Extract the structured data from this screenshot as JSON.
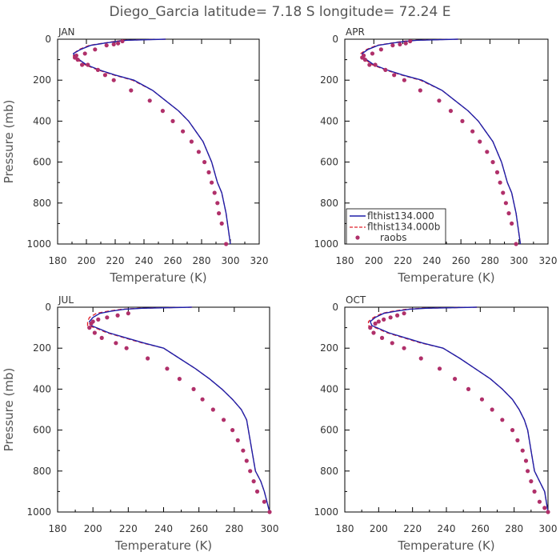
{
  "title": "Diego_Garcia   latitude= 7.18 S longitude= 72.24 E",
  "colors": {
    "model": "#1f1fa8",
    "model_b": "#e0202a",
    "raobs": "#b0306a"
  },
  "chart_data": [
    {
      "type": "line",
      "month": "JAN",
      "xlabel": "Temperature (K)",
      "ylabel": "Pressure (mb)",
      "xlim": [
        180,
        320
      ],
      "xticks": [
        180,
        200,
        220,
        240,
        260,
        280,
        300,
        320
      ],
      "ylim": [
        0,
        1000
      ],
      "yticks": [
        0,
        200,
        400,
        600,
        800,
        1000
      ],
      "y_inverted": true,
      "legend": false,
      "model": {
        "name": "",
        "T": [
          255,
          228,
          222,
          212,
          203,
          196,
          191,
          192,
          195,
          200,
          209,
          220,
          233,
          246,
          255,
          264,
          271,
          276,
          281,
          284,
          287,
          289,
          291,
          294,
          297,
          300
        ],
        "P": [
          0,
          5,
          10,
          20,
          30,
          50,
          70,
          85,
          100,
          125,
          150,
          175,
          200,
          250,
          300,
          350,
          400,
          450,
          500,
          550,
          600,
          650,
          700,
          750,
          850,
          1000
        ]
      },
      "model_b": {
        "name": "",
        "T": [
          255,
          226,
          220,
          211,
          202,
          195,
          191,
          191,
          194,
          199,
          208,
          219,
          232,
          246,
          255,
          264,
          271,
          276,
          281,
          284,
          287,
          289,
          291,
          294,
          297,
          300
        ],
        "P": [
          0,
          5,
          10,
          20,
          30,
          50,
          70,
          85,
          100,
          125,
          150,
          175,
          200,
          250,
          300,
          350,
          400,
          450,
          500,
          550,
          600,
          650,
          700,
          750,
          850,
          1000
        ]
      },
      "raobs": {
        "name": "",
        "T": [
          225,
          222,
          219,
          214,
          206,
          199,
          193,
          192,
          194,
          197,
          201,
          208,
          213,
          219,
          231,
          244,
          253,
          260,
          267,
          273,
          278,
          282,
          285,
          287,
          289,
          291,
          292,
          294,
          297
        ],
        "P": [
          10,
          20,
          25,
          30,
          50,
          70,
          80,
          90,
          100,
          125,
          125,
          150,
          175,
          200,
          250,
          300,
          350,
          400,
          450,
          500,
          550,
          600,
          650,
          700,
          750,
          800,
          850,
          900,
          1000
        ]
      }
    },
    {
      "type": "line",
      "month": "APR",
      "xlabel": "Temperature (K)",
      "ylabel": "",
      "xlim": [
        180,
        320
      ],
      "xticks": [
        180,
        200,
        220,
        240,
        260,
        280,
        300,
        320
      ],
      "ylim": [
        0,
        1000
      ],
      "yticks": [
        0,
        200,
        400,
        600,
        800,
        1000
      ],
      "y_inverted": true,
      "legend": true,
      "legend_entries": [
        "flthist134.000",
        "flthist134.000b",
        "raobs"
      ],
      "model": {
        "name": "flthist134.000",
        "T": [
          258,
          230,
          222,
          212,
          203,
          196,
          192,
          192,
          195,
          200,
          209,
          220,
          233,
          247,
          256,
          265,
          272,
          277,
          282,
          285,
          288,
          290,
          292,
          295,
          298,
          301
        ],
        "P": [
          0,
          5,
          10,
          20,
          30,
          50,
          70,
          85,
          100,
          125,
          150,
          175,
          200,
          250,
          300,
          350,
          400,
          450,
          500,
          550,
          600,
          650,
          700,
          750,
          850,
          1000
        ]
      },
      "model_b": {
        "name": "flthist134.000b",
        "T": [
          258,
          228,
          220,
          211,
          202,
          195,
          191,
          191,
          194,
          199,
          208,
          219,
          232,
          247,
          256,
          265,
          272,
          277,
          282,
          285,
          288,
          290,
          292,
          295,
          298,
          301
        ],
        "P": [
          0,
          5,
          10,
          20,
          30,
          50,
          70,
          85,
          100,
          125,
          150,
          175,
          200,
          250,
          300,
          350,
          400,
          450,
          500,
          550,
          600,
          650,
          700,
          750,
          850,
          1000
        ]
      },
      "raobs": {
        "name": "raobs",
        "T": [
          225,
          222,
          218,
          213,
          205,
          199,
          193,
          192,
          194,
          197,
          201,
          208,
          214,
          221,
          232,
          245,
          253,
          261,
          268,
          273,
          278,
          282,
          285,
          287,
          289,
          291,
          293,
          295,
          298
        ],
        "P": [
          10,
          20,
          25,
          30,
          50,
          70,
          80,
          90,
          100,
          125,
          125,
          150,
          175,
          200,
          250,
          300,
          350,
          400,
          450,
          500,
          550,
          600,
          650,
          700,
          750,
          800,
          850,
          900,
          1000
        ]
      }
    },
    {
      "type": "line",
      "month": "JUL",
      "xlabel": "Temperature (K)",
      "ylabel": "Pressure (mb)",
      "xlim": [
        180,
        300
      ],
      "xticks": [
        180,
        200,
        220,
        240,
        260,
        280,
        300
      ],
      "ylim": [
        0,
        1000
      ],
      "yticks": [
        0,
        200,
        400,
        600,
        800,
        1000
      ],
      "y_inverted": true,
      "legend": false,
      "model": {
        "name": "",
        "T": [
          256,
          228,
          218,
          210,
          204,
          200,
          198,
          199,
          202,
          209,
          219,
          229,
          240,
          249,
          258,
          266,
          273,
          279,
          284,
          287,
          288,
          289,
          290,
          292,
          295,
          297,
          300
        ],
        "P": [
          0,
          5,
          10,
          20,
          30,
          50,
          70,
          90,
          100,
          125,
          150,
          175,
          200,
          250,
          300,
          350,
          400,
          450,
          500,
          550,
          600,
          650,
          700,
          800,
          850,
          900,
          1000
        ]
      },
      "model_b": {
        "name": "",
        "T": [
          256,
          226,
          216,
          208,
          202,
          198,
          197,
          197,
          201,
          208,
          218,
          228,
          240,
          249,
          258,
          266,
          273,
          279,
          284,
          287,
          288,
          289,
          290,
          292,
          295,
          297,
          300
        ],
        "P": [
          0,
          5,
          10,
          20,
          30,
          50,
          70,
          90,
          100,
          125,
          150,
          175,
          200,
          250,
          300,
          350,
          400,
          450,
          500,
          550,
          600,
          650,
          700,
          800,
          850,
          900,
          1000
        ]
      },
      "raobs": {
        "name": "",
        "T": [
          220,
          214,
          208,
          203,
          200,
          199,
          198,
          201,
          205,
          213,
          219,
          231,
          242,
          249,
          257,
          262,
          268,
          274,
          279,
          282,
          285,
          287,
          289,
          291,
          293,
          297,
          300
        ],
        "P": [
          30,
          40,
          50,
          60,
          70,
          80,
          100,
          125,
          150,
          175,
          200,
          250,
          300,
          350,
          400,
          450,
          500,
          550,
          600,
          650,
          700,
          750,
          800,
          850,
          900,
          950,
          1000
        ]
      }
    },
    {
      "type": "line",
      "month": "OCT",
      "xlabel": "Temperature (K)",
      "ylabel": "",
      "xlim": [
        180,
        300
      ],
      "xticks": [
        180,
        200,
        220,
        240,
        260,
        280,
        300
      ],
      "ylim": [
        0,
        1000
      ],
      "yticks": [
        0,
        200,
        400,
        600,
        800,
        1000
      ],
      "y_inverted": true,
      "legend": false,
      "model": {
        "name": "",
        "T": [
          258,
          228,
          218,
          210,
          203,
          198,
          195,
          196,
          199,
          206,
          216,
          226,
          238,
          248,
          257,
          266,
          273,
          279,
          283,
          286,
          288,
          289,
          290,
          292,
          295,
          298,
          300
        ],
        "P": [
          0,
          5,
          10,
          20,
          30,
          50,
          70,
          90,
          100,
          125,
          150,
          175,
          200,
          250,
          300,
          350,
          400,
          450,
          500,
          550,
          600,
          650,
          700,
          800,
          850,
          900,
          1000
        ]
      },
      "model_b": {
        "name": "",
        "T": [
          258,
          226,
          216,
          208,
          202,
          197,
          194,
          194,
          198,
          205,
          215,
          225,
          238,
          248,
          257,
          266,
          273,
          279,
          283,
          286,
          288,
          289,
          290,
          292,
          295,
          298,
          300
        ],
        "P": [
          0,
          5,
          10,
          20,
          30,
          50,
          70,
          90,
          100,
          125,
          150,
          175,
          200,
          250,
          300,
          350,
          400,
          450,
          500,
          550,
          600,
          650,
          700,
          800,
          850,
          900,
          1000
        ]
      },
      "raobs": {
        "name": "",
        "T": [
          215,
          211,
          207,
          203,
          200,
          198,
          195,
          197,
          202,
          208,
          215,
          225,
          236,
          245,
          253,
          261,
          267,
          273,
          279,
          282,
          285,
          287,
          288,
          290,
          292,
          295,
          298,
          300
        ],
        "P": [
          30,
          40,
          50,
          60,
          70,
          80,
          100,
          125,
          150,
          175,
          200,
          250,
          300,
          350,
          400,
          450,
          500,
          550,
          600,
          650,
          700,
          750,
          800,
          850,
          900,
          950,
          980,
          1000
        ]
      }
    }
  ]
}
